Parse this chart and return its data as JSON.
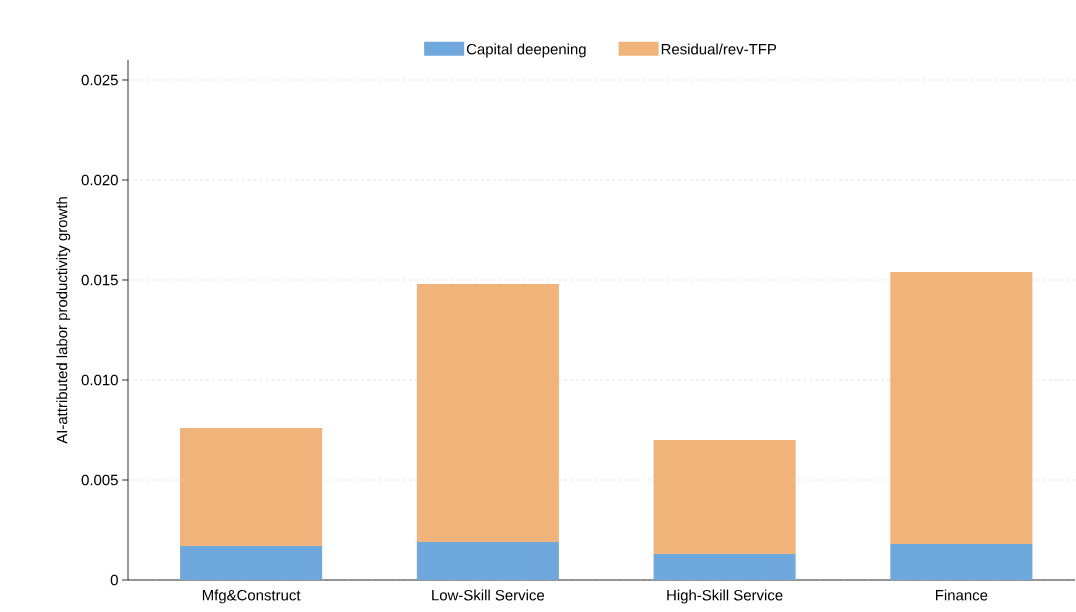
{
  "chart_data": {
    "type": "bar",
    "stacked": true,
    "ylabel": "AI-attributed labor productivity growth",
    "categories": [
      "Mfg&Construct",
      "Low-Skill Service",
      "High-Skill Service",
      "Finance"
    ],
    "series": [
      {
        "name": "Capital deepening",
        "color": "#6fa8dc",
        "values": [
          0.0017,
          0.0019,
          0.0013,
          0.0018
        ]
      },
      {
        "name": "Residual/rev-TFP",
        "color": "#f0b47a",
        "values": [
          0.0059,
          0.0129,
          0.0057,
          0.0136
        ]
      }
    ],
    "ylim": [
      0,
      0.026
    ],
    "yticks": [
      0,
      {
        "value": 0.005,
        "label": "0.005"
      },
      {
        "value": 0.01,
        "label": "0.010"
      },
      {
        "value": 0.015,
        "label": "0.015"
      },
      {
        "value": 0.02,
        "label": "0.020"
      },
      {
        "value": 0.025,
        "label": "0.025"
      }
    ],
    "grid": "y",
    "legend": "top"
  }
}
